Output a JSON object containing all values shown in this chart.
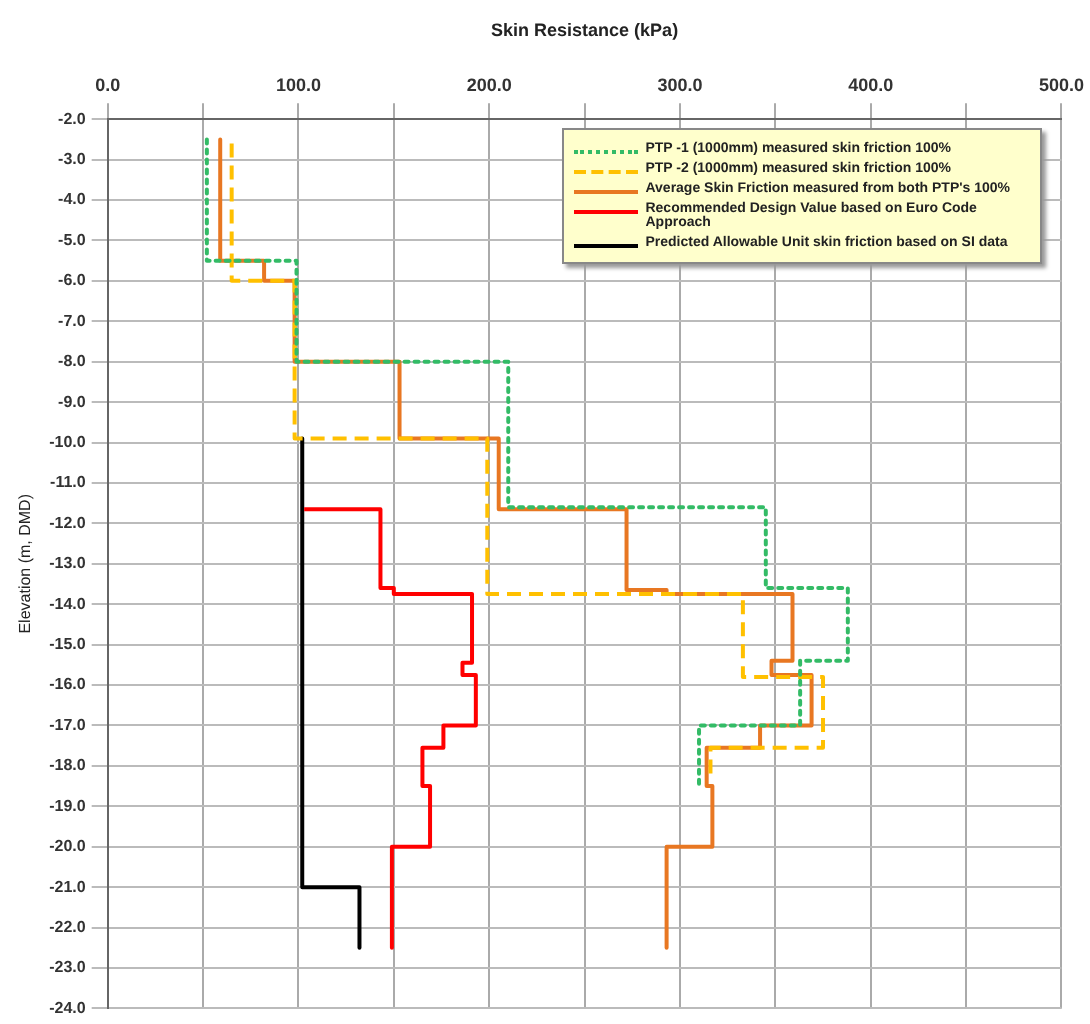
{
  "chart_data": {
    "type": "line",
    "xlabel": "Skin Resistance (kPa)",
    "ylabel": "Elevation (m, DMD)",
    "xlim": [
      0,
      500
    ],
    "xticks": [
      {
        "value": 0,
        "label": "0.0"
      },
      {
        "value": 50,
        "label": null
      },
      {
        "value": 100,
        "label": "100.0"
      },
      {
        "value": 150,
        "label": null
      },
      {
        "value": 200,
        "label": "200.0"
      },
      {
        "value": 250,
        "label": null
      },
      {
        "value": 300,
        "label": "300.0"
      },
      {
        "value": 350,
        "label": null
      },
      {
        "value": 400,
        "label": "400.0"
      },
      {
        "value": 450,
        "label": null
      },
      {
        "value": 500,
        "label": "500.0"
      }
    ],
    "ylim": [
      -24,
      -2
    ],
    "yticks": [
      {
        "value": -2,
        "label": "-2.0"
      },
      {
        "value": -3,
        "label": "-3.0"
      },
      {
        "value": -4,
        "label": "-4.0"
      },
      {
        "value": -5,
        "label": "-5.0"
      },
      {
        "value": -6,
        "label": "-6.0"
      },
      {
        "value": -7,
        "label": "-7.0"
      },
      {
        "value": -8,
        "label": "-8.0"
      },
      {
        "value": -9,
        "label": "-9.0"
      },
      {
        "value": -10,
        "label": "-10.0"
      },
      {
        "value": -11,
        "label": "-11.0"
      },
      {
        "value": -12,
        "label": "-12.0"
      },
      {
        "value": -13,
        "label": "-13.0"
      },
      {
        "value": -14,
        "label": "-14.0"
      },
      {
        "value": -15,
        "label": "-15.0"
      },
      {
        "value": -16,
        "label": "-16.0"
      },
      {
        "value": -17,
        "label": "-17.0"
      },
      {
        "value": -18,
        "label": "-18.0"
      },
      {
        "value": -19,
        "label": "-19.0"
      },
      {
        "value": -20,
        "label": "-20.0"
      },
      {
        "value": -21,
        "label": "-21.0"
      },
      {
        "value": -22,
        "label": "-22.0"
      },
      {
        "value": -23,
        "label": "-23.0"
      },
      {
        "value": -24,
        "label": "-24.0"
      }
    ],
    "grid": true,
    "legend": "top right",
    "marker": "none",
    "series": [
      {
        "name": "PTP -1 (1000mm) measured skin friction 100%",
        "color": "#33bb66",
        "line_style": "dotted",
        "x": [
          52,
          52,
          99,
          99,
          210,
          210,
          345,
          345,
          388,
          388,
          363,
          363,
          310,
          310
        ],
        "values": [
          -2.5,
          -5.5,
          -5.5,
          -8.0,
          -8.0,
          -11.6,
          -11.6,
          -13.6,
          -13.6,
          -15.4,
          -15.4,
          -17.0,
          -17.0,
          -18.5
        ]
      },
      {
        "name": "PTP -2 (1000mm) measured skin friction 100%",
        "color": "#ffc000",
        "line_style": "dashed",
        "x": [
          65,
          65,
          98,
          98,
          199,
          199,
          333,
          333,
          375,
          375,
          316,
          316
        ],
        "values": [
          -2.6,
          -6.0,
          -6.0,
          -9.9,
          -9.9,
          -13.75,
          -13.75,
          -15.8,
          -15.8,
          -17.55,
          -17.55,
          -18.3
        ]
      },
      {
        "name": "Average Skin Friction measured from both PTP's 100%",
        "color": "#e87722",
        "line_style": "solid",
        "x": [
          59,
          59,
          82,
          82,
          98,
          98,
          153,
          153,
          205,
          205,
          272,
          272,
          293,
          293,
          359,
          359,
          348,
          348,
          369,
          369,
          342,
          342,
          314,
          314,
          317,
          317,
          293,
          293
        ],
        "values": [
          -2.5,
          -5.5,
          -5.5,
          -6.0,
          -6.0,
          -8.0,
          -8.0,
          -9.9,
          -9.9,
          -11.65,
          -11.65,
          -13.65,
          -13.65,
          -13.75,
          -13.75,
          -15.4,
          -15.4,
          -15.75,
          -15.75,
          -17.0,
          -17.0,
          -17.55,
          -17.55,
          -18.5,
          -18.5,
          -20.0,
          -20.0,
          -22.5
        ]
      },
      {
        "name": "Recommended Design Value based on Euro Code Approach",
        "color": "#ff0000",
        "line_style": "solid",
        "x": [
          103,
          143,
          143,
          150,
          150,
          191,
          191,
          186,
          186,
          193,
          193,
          176,
          176,
          165,
          165,
          169,
          169,
          149,
          149
        ],
        "values": [
          -11.65,
          -11.65,
          -13.6,
          -13.6,
          -13.75,
          -13.75,
          -15.45,
          -15.45,
          -15.75,
          -15.75,
          -17.0,
          -17.0,
          -17.55,
          -17.55,
          -18.5,
          -18.5,
          -20.0,
          -20.0,
          -22.5
        ]
      },
      {
        "name": "Predicted Allowable Unit skin friction based on SI data",
        "color": "#000000",
        "line_style": "solid",
        "x": [
          102,
          102,
          132,
          132
        ],
        "values": [
          -9.9,
          -21.0,
          -21.0,
          -22.5
        ]
      }
    ]
  }
}
